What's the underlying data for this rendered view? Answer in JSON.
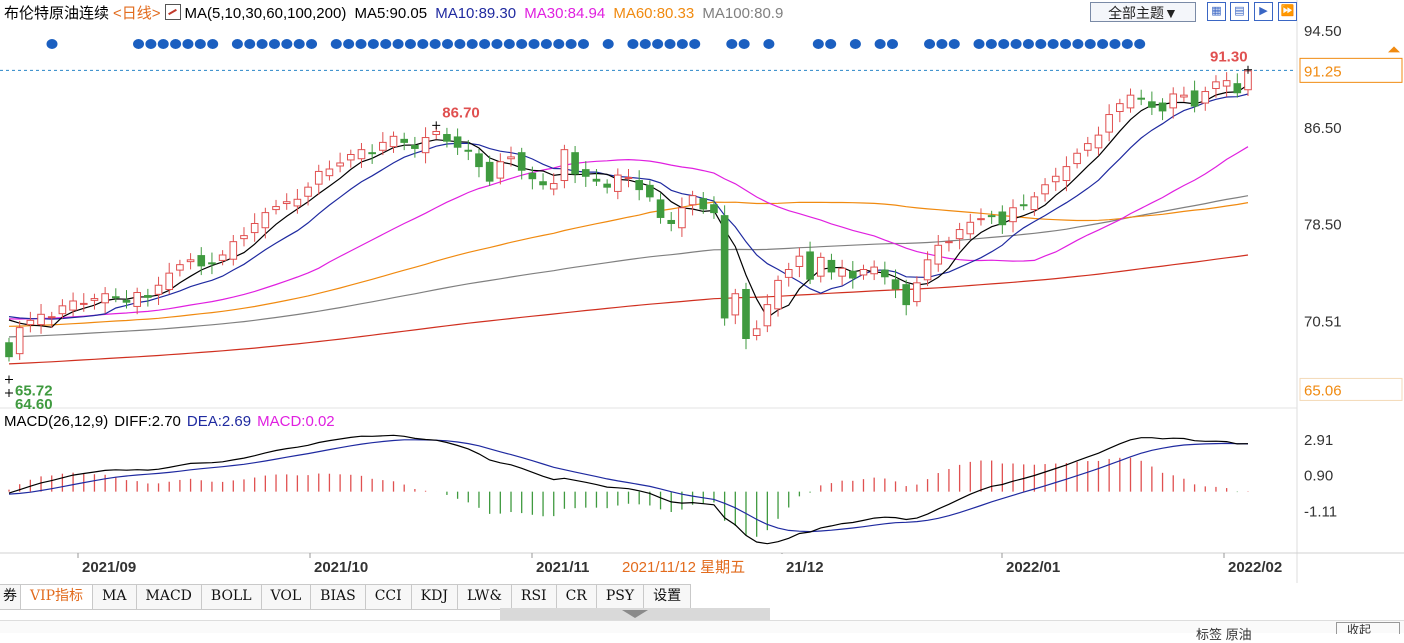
{
  "header": {
    "instrument": "布伦特原油连续",
    "period": "<日线>",
    "ma_label": "MA(5,10,30,60,100,200)",
    "ma5": "MA5:90.05",
    "ma10": "MA10:89.30",
    "ma30": "MA30:84.94",
    "ma60": "MA60:80.33",
    "ma100": "MA100:80.9",
    "theme_button": "全部主题▼"
  },
  "toolbar_icons": [
    "grid-icon",
    "bars-icon",
    "play-icon",
    "fast-forward-icon"
  ],
  "colors": {
    "up": "#e05050",
    "down": "#3f9a3f",
    "ma5": "#000000",
    "ma10": "#1f2aa0",
    "ma30": "#e020e0",
    "ma60": "#f08a10",
    "ma100": "#808080",
    "ma200": "#d03020",
    "dots": "#1b5fc0",
    "price_axis": "#333333",
    "price_axis_current": "#f08a10",
    "date_current": "#e26b1d"
  },
  "chart_data": [
    {
      "type": "candlestick",
      "title": "布伦特原油连续 日线",
      "price_axis_ticks": [
        "94.50",
        "86.50",
        "78.50",
        "70.51"
      ],
      "y_range": [
        64.6,
        94.5
      ],
      "current_price_label": "91.25",
      "low_axis_label": "65.06",
      "annotations": [
        {
          "text": "86.70",
          "kind": "high"
        },
        {
          "text": "65.72",
          "kind": "low"
        },
        {
          "text": "91.30",
          "kind": "high"
        },
        {
          "text": "64.60",
          "kind": "low"
        }
      ],
      "x_labels": [
        "2021/09",
        "2021/10",
        "2021/11",
        "21/12",
        "2022/01",
        "2022/02"
      ],
      "cursor_date": "2021/11/12 星期五",
      "ma_end_values": {
        "MA5": 90.05,
        "MA10": 89.3,
        "MA30": 84.94,
        "MA60": 80.33,
        "MA100": 80.9,
        "MA200": 76.0
      },
      "closes": [
        67.6,
        70.0,
        70.6,
        71.1,
        70.9,
        71.8,
        72.2,
        72.0,
        72.4,
        72.8,
        72.5,
        72.1,
        72.9,
        72.5,
        73.5,
        74.5,
        75.2,
        75.6,
        75.1,
        75.3,
        76.0,
        77.1,
        77.6,
        78.6,
        79.5,
        80.0,
        80.4,
        80.6,
        81.6,
        82.9,
        83.1,
        83.6,
        84.3,
        84.7,
        84.4,
        85.3,
        85.8,
        85.3,
        84.8,
        85.7,
        86.2,
        85.4,
        84.9,
        84.6,
        83.3,
        82.1,
        83.7,
        84.1,
        83.0,
        82.3,
        81.8,
        81.9,
        84.7,
        82.7,
        82.5,
        82.1,
        81.6,
        82.6,
        82.4,
        81.4,
        80.8,
        79.1,
        78.6,
        79.9,
        80.9,
        79.8,
        79.5,
        70.8,
        72.8,
        69.1,
        69.9,
        71.9,
        73.9,
        74.8,
        75.9,
        74.0,
        75.8,
        74.6,
        74.9,
        74.1,
        74.8,
        75.0,
        74.2,
        73.2,
        71.9,
        73.7,
        75.6,
        76.8,
        77.1,
        78.1,
        78.7,
        79.0,
        79.2,
        78.5,
        79.9,
        80.1,
        80.8,
        81.8,
        82.5,
        83.3,
        84.4,
        85.2,
        85.9,
        87.6,
        88.5,
        89.2,
        88.9,
        88.2,
        87.9,
        89.3,
        89.2,
        88.3,
        89.5,
        90.3,
        90.4,
        89.4,
        91.2
      ]
    },
    {
      "type": "line",
      "title": "MACD(26,12,9)",
      "series": [
        {
          "name": "DIFF",
          "value": 2.7
        },
        {
          "name": "DEA",
          "value": 2.69
        },
        {
          "name": "MACD",
          "value": 0.02
        }
      ],
      "labels": {
        "diff": "DIFF:2.70",
        "dea": "DEA:2.69",
        "macd": "MACD:0.02"
      },
      "y_ticks": [
        "2.91",
        "0.90",
        "-1.11"
      ],
      "y_range": [
        -3.4,
        2.91
      ]
    }
  ],
  "tabs": [
    "券",
    "VIP指标",
    "MA",
    "MACD",
    "BOLL",
    "VOL",
    "BIAS",
    "CCI",
    "KDJ",
    "LW&",
    "RSI",
    "CR",
    "PSY",
    "设置"
  ],
  "bottom_bar": {
    "info": "标签 原油",
    "select": "收起"
  }
}
